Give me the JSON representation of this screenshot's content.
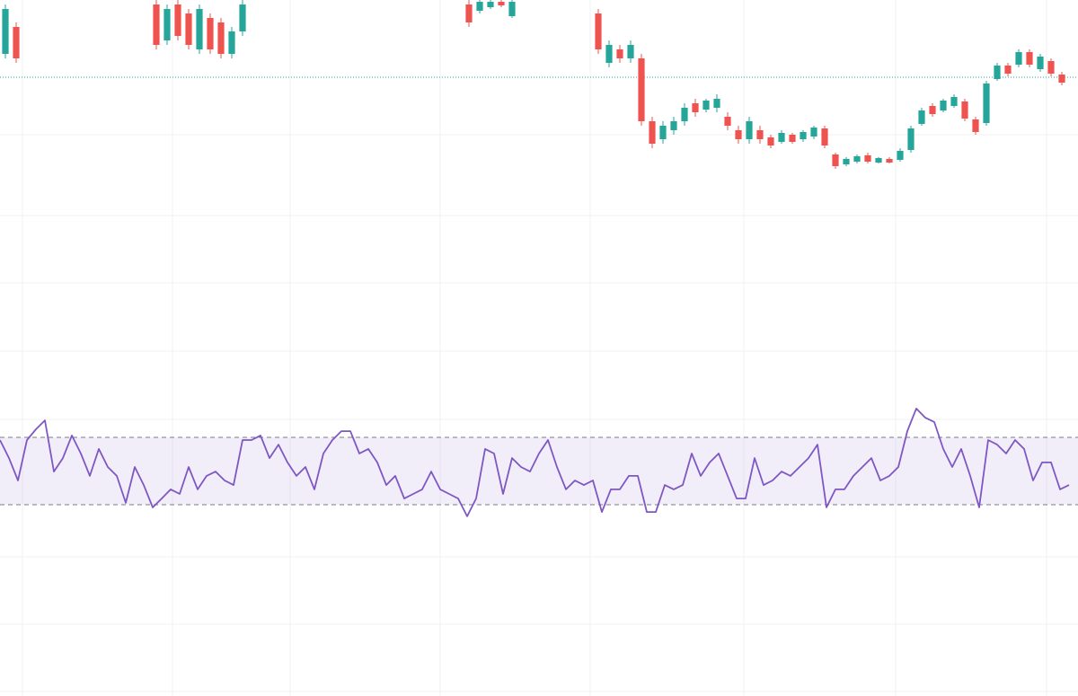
{
  "chart_data": [
    {
      "type": "candlestick",
      "xlim": [
        0,
        100
      ],
      "ylim": [
        0,
        430
      ],
      "up_color": "#26a69a",
      "down_color": "#ef5350",
      "price_line": 344,
      "price_line_color": "#26a69a",
      "x": [
        0,
        1,
        14,
        15,
        16,
        17,
        18,
        19,
        20,
        21,
        22,
        43,
        44,
        45,
        46,
        47,
        55,
        56,
        57,
        58,
        59,
        60,
        61,
        62,
        63,
        64,
        65,
        66,
        67,
        68,
        69,
        70,
        71,
        72,
        73,
        74,
        75,
        76,
        77,
        78,
        79,
        80,
        81,
        82,
        83,
        84,
        85,
        86,
        87,
        88,
        89,
        90,
        91,
        92,
        93,
        94,
        95,
        96,
        97,
        98
      ],
      "open": [
        370,
        400,
        425,
        385,
        425,
        415,
        375,
        410,
        405,
        370,
        395,
        425,
        418,
        422,
        428,
        412,
        415,
        360,
        375,
        365,
        365,
        295,
        275,
        285,
        295,
        315,
        308,
        310,
        300,
        285,
        275,
        285,
        277,
        272,
        280,
        275,
        278,
        287,
        258,
        247,
        250,
        257,
        249,
        253,
        252,
        263,
        292,
        312,
        307,
        312,
        317,
        297,
        293,
        342,
        357,
        358,
        372,
        353,
        362,
        347
      ],
      "high": [
        425,
        405,
        430,
        425,
        430,
        420,
        425,
        415,
        410,
        400,
        430,
        430,
        430,
        430,
        430,
        430,
        420,
        385,
        380,
        385,
        370,
        300,
        295,
        300,
        315,
        320,
        320,
        325,
        305,
        290,
        300,
        290,
        280,
        285,
        282,
        285,
        290,
        290,
        260,
        255,
        258,
        260,
        255,
        255,
        265,
        290,
        310,
        315,
        320,
        325,
        320,
        300,
        340,
        360,
        360,
        375,
        375,
        370,
        365,
        350
      ],
      "low": [
        365,
        360,
        375,
        380,
        385,
        375,
        370,
        370,
        365,
        365,
        390,
        400,
        415,
        420,
        422,
        410,
        370,
        355,
        360,
        360,
        290,
        265,
        270,
        280,
        290,
        300,
        305,
        305,
        285,
        270,
        270,
        270,
        265,
        270,
        270,
        272,
        275,
        265,
        242,
        245,
        248,
        248,
        248,
        248,
        250,
        260,
        290,
        300,
        305,
        310,
        295,
        280,
        290,
        340,
        345,
        355,
        355,
        350,
        345,
        335
      ],
      "close": [
        420,
        365,
        380,
        420,
        390,
        380,
        420,
        375,
        370,
        395,
        425,
        405,
        428,
        428,
        424,
        428,
        375,
        380,
        365,
        380,
        295,
        270,
        290,
        295,
        310,
        305,
        318,
        320,
        290,
        275,
        295,
        275,
        268,
        282,
        272,
        283,
        288,
        268,
        245,
        253,
        256,
        250,
        254,
        249,
        262,
        287,
        307,
        303,
        318,
        322,
        298,
        283,
        337,
        357,
        348,
        372,
        358,
        367,
        348,
        338
      ]
    },
    {
      "type": "line",
      "ylim": [
        0,
        100
      ],
      "color": "#7e57c2",
      "bands": [
        30,
        70
      ],
      "values": [
        68.4,
        57.7,
        44.4,
        68.4,
        74.8,
        80.1,
        49.7,
        57.7,
        71.1,
        60.4,
        47.1,
        63.1,
        52.4,
        47.1,
        31.1,
        52.4,
        41.7,
        28.4,
        33.7,
        39.1,
        36.4,
        52.4,
        39.1,
        47.1,
        49.7,
        44.4,
        41.7,
        68.4,
        68.4,
        71.1,
        57.7,
        65.7,
        55.1,
        47.1,
        52.4,
        39.1,
        60.4,
        68.4,
        73.7,
        73.7,
        60.4,
        63.1,
        55.1,
        41.7,
        47.1,
        33.7,
        36.4,
        39.1,
        49.7,
        39.1,
        36.4,
        33.7,
        23.1,
        33.7,
        63.1,
        60.4,
        36.4,
        57.7,
        52.4,
        49.7,
        60.4,
        68.4,
        52.4,
        39.1,
        44.4,
        41.7,
        44.4,
        25.7,
        39.1,
        39.1,
        47.1,
        47.1,
        25.7,
        25.7,
        41.7,
        39.1,
        41.7,
        60.4,
        47.1,
        55.1,
        60.4,
        47.1,
        33.7,
        33.7,
        57.7,
        41.7,
        44.4,
        49.7,
        47.1,
        52.4,
        57.7,
        65.7,
        28.4,
        39.1,
        39.1,
        47.1,
        52.4,
        57.7,
        44.4,
        47.1,
        52.4,
        73.7,
        87.1,
        81.7,
        79.1,
        63.1,
        52.4,
        63.1,
        47.1,
        28.4,
        68.4,
        65.7,
        60.4,
        68.4,
        63.1,
        44.4,
        55.1,
        55.1,
        39.1,
        41.7
      ]
    }
  ]
}
